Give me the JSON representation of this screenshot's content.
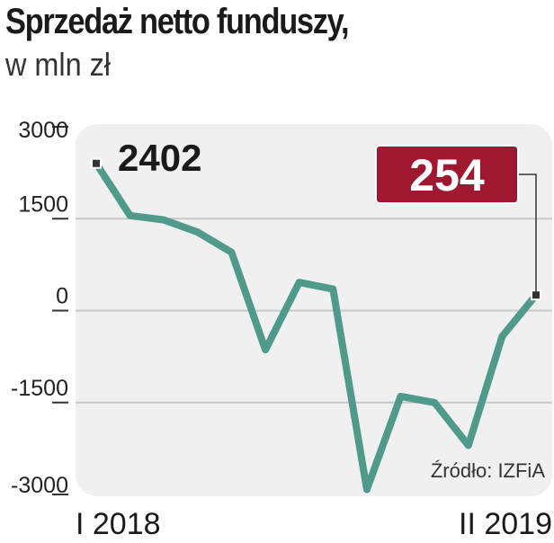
{
  "title": "Sprzedaż netto funduszy,",
  "subtitle": "w mln zł",
  "source": "Źródło: IZFiA",
  "colors": {
    "line": "#4f9a8a",
    "panel": "#f0f0f0",
    "grid": "#c8c8c8",
    "highlight": "#a0182f"
  },
  "chart_data": {
    "type": "line",
    "title": "Sprzedaż netto funduszy,",
    "subtitle": "w mln zł",
    "xlabel": "",
    "ylabel": "",
    "x_tick_labels": [
      "I 2018",
      "II 2019"
    ],
    "y_ticks": [
      3000,
      1500,
      0,
      -1500,
      -3000
    ],
    "y_tick_labels": [
      "3000",
      "1500",
      "0",
      "-1500",
      "-3000"
    ],
    "ylim": [
      -3000,
      3000
    ],
    "grid": true,
    "series": [
      {
        "values": [
          2402,
          1550,
          1480,
          1280,
          950,
          -640,
          460,
          350,
          -2920,
          -1400,
          -1500,
          -2200,
          -420,
          254
        ]
      }
    ],
    "annotations": [
      {
        "point_index": 0,
        "label": "2402"
      },
      {
        "point_index": 13,
        "label": "254"
      }
    ]
  }
}
